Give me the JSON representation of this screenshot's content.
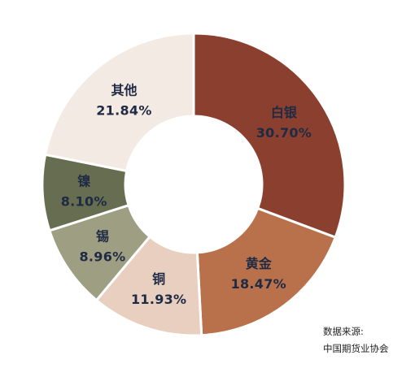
{
  "chart_data": {
    "type": "pie",
    "donut": true,
    "start_angle_deg": 0,
    "direction": "clockwise",
    "slices": [
      {
        "label": "白银",
        "value": 30.7,
        "value_label": "30.70%",
        "color": "#8b3f2e"
      },
      {
        "label": "黄金",
        "value": 18.47,
        "value_label": "18.47%",
        "color": "#b9714c"
      },
      {
        "label": "铜",
        "value": 11.93,
        "value_label": "11.93%",
        "color": "#e8cfbf"
      },
      {
        "label": "锡",
        "value": 8.96,
        "value_label": "8.96%",
        "color": "#9e9f82"
      },
      {
        "label": "镍",
        "value": 8.1,
        "value_label": "8.10%",
        "color": "#666d51"
      },
      {
        "label": "其他",
        "value": 21.84,
        "value_label": "21.84%",
        "color": "#f3ebe3"
      }
    ]
  },
  "source": {
    "line1": "数据来源:",
    "line2": "中国期货业协会"
  }
}
